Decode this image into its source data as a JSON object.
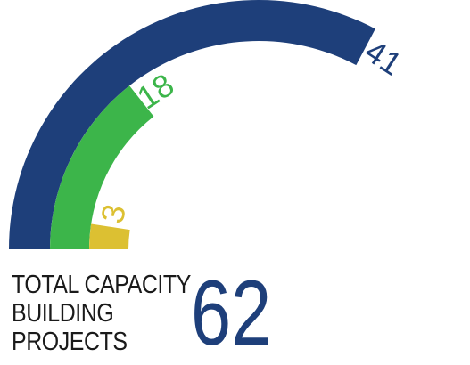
{
  "chart_data": {
    "type": "radial-bar",
    "title": "TOTAL CAPACITY BUILDING PROJECTS",
    "total": "62",
    "series": [
      {
        "value": 41,
        "color": "#1e3f7a"
      },
      {
        "value": 18,
        "color": "#3cb54a"
      },
      {
        "value": 3,
        "color": "#dcc032"
      }
    ]
  },
  "caption": {
    "lines": [
      "TOTAL CAPACITY",
      "BUILDING",
      "PROJECTS"
    ],
    "total": "62"
  }
}
